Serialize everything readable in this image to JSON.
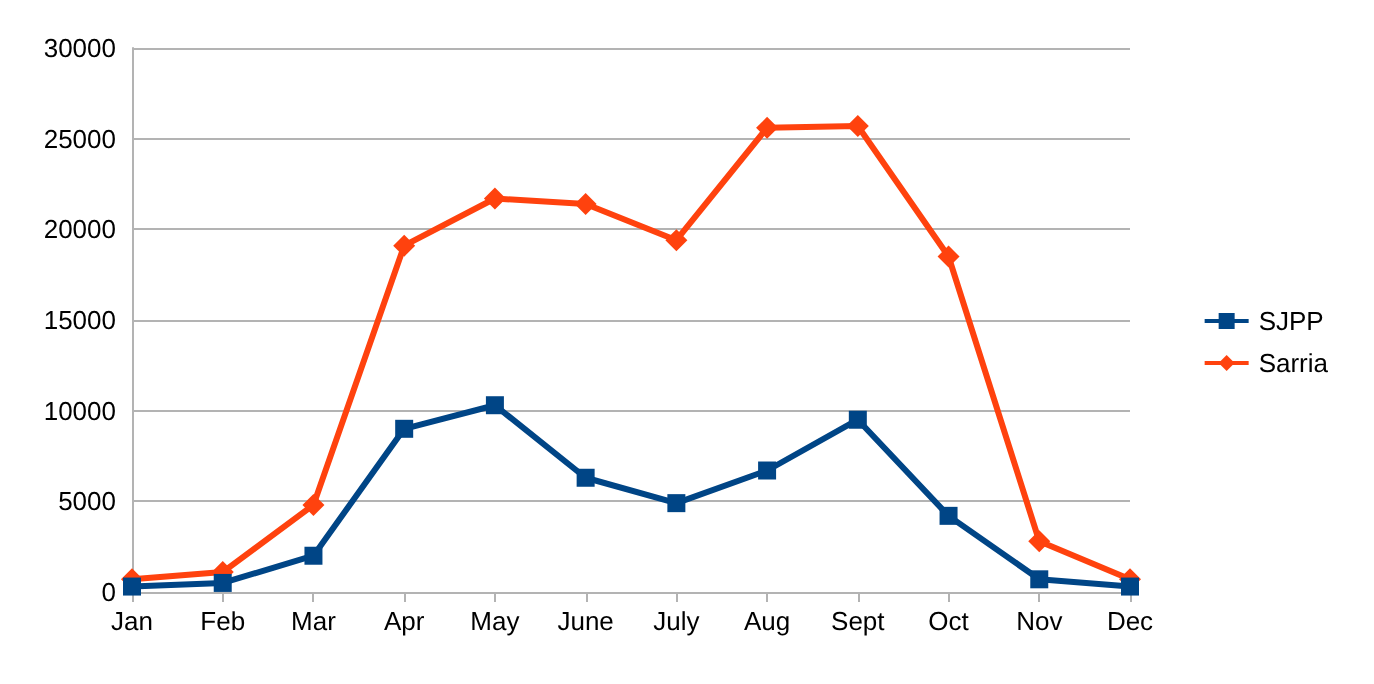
{
  "chart_data": {
    "type": "line",
    "categories": [
      "Jan",
      "Feb",
      "Mar",
      "Apr",
      "May",
      "June",
      "July",
      "Aug",
      "Sept",
      "Oct",
      "Nov",
      "Dec"
    ],
    "series": [
      {
        "name": "SJPP",
        "color": "#004586",
        "marker": "square",
        "values": [
          300,
          500,
          2000,
          9000,
          10300,
          6300,
          4900,
          6700,
          9500,
          4200,
          700,
          300
        ]
      },
      {
        "name": "Sarria",
        "color": "#ff420e",
        "marker": "diamond",
        "values": [
          700,
          1100,
          4800,
          19100,
          21700,
          21400,
          19400,
          25600,
          25700,
          18500,
          2800,
          700
        ]
      }
    ],
    "ylim": [
      0,
      30000
    ],
    "yticks": [
      0,
      5000,
      10000,
      15000,
      20000,
      25000,
      30000
    ],
    "grid": "y",
    "legend": "right",
    "line_style": "solid"
  }
}
